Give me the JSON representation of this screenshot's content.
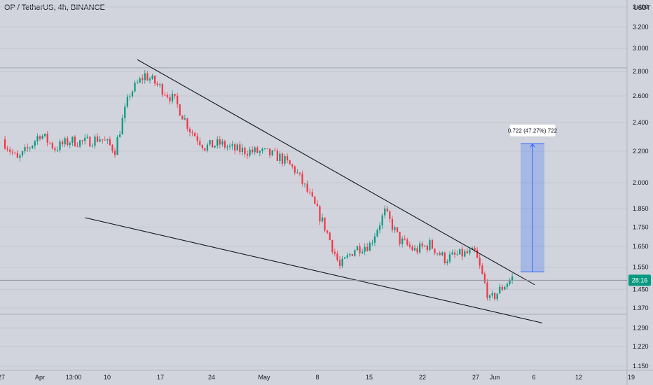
{
  "header": {
    "title": "OP / TetherUS, 4h, BINANCE"
  },
  "chart_data": {
    "type": "candlestick",
    "title": "OP / TetherUS, 4h, BINANCE",
    "unit": "USDT",
    "yaxis": {
      "scale": "log",
      "ylim": [
        1.15,
        3.4
      ],
      "ticks": [
        3.4,
        3.2,
        3.0,
        2.8,
        2.6,
        2.4,
        2.2,
        2.0,
        1.85,
        1.75,
        1.65,
        1.55,
        1.45,
        1.37,
        1.29,
        1.22,
        1.15
      ]
    },
    "xaxis": {
      "ticks": [
        "27",
        "Apr",
        "13:00",
        "10",
        "17",
        "24",
        "May",
        "8",
        "15",
        "22",
        "27",
        "Jun",
        "6",
        "12",
        "19"
      ]
    },
    "price_path": [
      {
        "x": "27 Mar",
        "close": 2.28
      },
      {
        "x": "29 Mar",
        "close": 2.14
      },
      {
        "x": "31 Mar",
        "close": 2.25
      },
      {
        "x": "Apr",
        "close": 2.32
      },
      {
        "x": "3 Apr",
        "close": 2.22
      },
      {
        "x": "5 Apr",
        "close": 2.27
      },
      {
        "x": "7 Apr",
        "close": 2.26
      },
      {
        "x": "9 Apr",
        "close": 2.29
      },
      {
        "x": "11 Apr",
        "close": 2.21
      },
      {
        "x": "13 Apr",
        "close": 2.62
      },
      {
        "x": "15 Apr",
        "close": 2.77
      },
      {
        "x": "17 Apr",
        "close": 2.67
      },
      {
        "x": "19 Apr",
        "close": 2.56
      },
      {
        "x": "21 Apr",
        "close": 2.35
      },
      {
        "x": "23 Apr",
        "close": 2.23
      },
      {
        "x": "25 Apr",
        "close": 2.25
      },
      {
        "x": "27 Apr",
        "close": 2.21
      },
      {
        "x": "29 Apr",
        "close": 2.2
      },
      {
        "x": "1 May",
        "close": 2.19
      },
      {
        "x": "3 May",
        "close": 2.16
      },
      {
        "x": "5 May",
        "close": 2.08
      },
      {
        "x": "7 May",
        "close": 1.92
      },
      {
        "x": "9 May",
        "close": 1.75
      },
      {
        "x": "11 May",
        "close": 1.55
      },
      {
        "x": "13 May",
        "close": 1.64
      },
      {
        "x": "15 May",
        "close": 1.66
      },
      {
        "x": "17 May",
        "close": 1.83
      },
      {
        "x": "19 May",
        "close": 1.68
      },
      {
        "x": "21 May",
        "close": 1.63
      },
      {
        "x": "23 May",
        "close": 1.66
      },
      {
        "x": "25 May",
        "close": 1.59
      },
      {
        "x": "27 May",
        "close": 1.61
      },
      {
        "x": "29 May",
        "close": 1.62
      },
      {
        "x": "31 May",
        "close": 1.4
      },
      {
        "x": "2 Jun",
        "close": 1.47
      },
      {
        "x": "3 Jun",
        "close": 1.5
      }
    ],
    "current_price": {
      "value": 1.49,
      "label": "28:16",
      "color": "#089981"
    },
    "trendlines": [
      {
        "name": "upper-trendline",
        "from": {
          "x": "14 Apr",
          "y": 2.9
        },
        "to": {
          "x": "6 Jun",
          "y": 1.47
        }
      },
      {
        "name": "lower-trendline",
        "from": {
          "x": "7 Apr",
          "y": 1.8
        },
        "to": {
          "x": "7 Jun",
          "y": 1.31
        }
      }
    ],
    "projection": {
      "from": 1.528,
      "to": 2.25,
      "label": "0.722 (47.27%) 722",
      "fill": "#2962ff"
    },
    "grid": true,
    "colors": {
      "up": "#089981",
      "down": "#f23645",
      "line": "#131722"
    }
  }
}
